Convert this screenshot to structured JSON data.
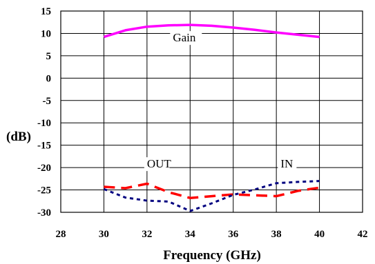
{
  "chart_data": {
    "type": "line",
    "title": "",
    "xlabel": "Frequency (GHz)",
    "ylabel": "(dB)",
    "xlim": [
      28,
      42
    ],
    "ylim": [
      -30,
      15
    ],
    "xticks": [
      28,
      30,
      32,
      34,
      36,
      38,
      40,
      42
    ],
    "yticks": [
      15,
      10,
      5,
      0,
      -5,
      -10,
      -15,
      -20,
      -25,
      -30
    ],
    "grid": true,
    "legend": "none",
    "series": [
      {
        "name": "Gain",
        "color": "#ff00ff",
        "style": "solid",
        "x": [
          30,
          31,
          32,
          33,
          34,
          35,
          36,
          37,
          38,
          39,
          40
        ],
        "y": [
          9.2,
          10.7,
          11.5,
          11.8,
          11.9,
          11.7,
          11.3,
          10.8,
          10.2,
          9.7,
          9.2
        ]
      },
      {
        "name": "OUT",
        "color": "#ff0000",
        "style": "dashed",
        "x": [
          30,
          31,
          32,
          33,
          34,
          35,
          36,
          37,
          38,
          39,
          40
        ],
        "y": [
          -24.3,
          -24.6,
          -23.6,
          -25.5,
          -26.8,
          -26.4,
          -26.0,
          -26.2,
          -26.4,
          -25.2,
          -24.5
        ]
      },
      {
        "name": "IN",
        "color": "#000080",
        "style": "dotted",
        "x": [
          30,
          31,
          32,
          33,
          34,
          35,
          36,
          37,
          38,
          39,
          40
        ],
        "y": [
          -24.8,
          -26.7,
          -27.4,
          -27.6,
          -29.7,
          -28.0,
          -26.1,
          -24.9,
          -23.5,
          -23.2,
          -23.0
        ]
      }
    ],
    "annotations": [
      {
        "text": "Gain",
        "x": 33.2,
        "y": 8.2
      },
      {
        "text": "OUT",
        "x": 32.0,
        "y": -20
      },
      {
        "text": "IN",
        "x": 38.2,
        "y": -20
      }
    ]
  }
}
